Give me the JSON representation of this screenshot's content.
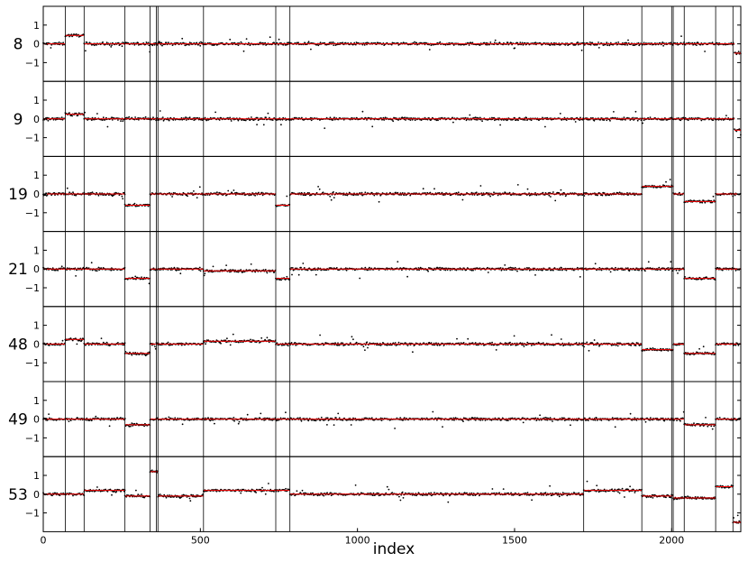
{
  "chart_data": {
    "type": "scatter",
    "xlabel": "index",
    "xlim": [
      0,
      2220
    ],
    "xticks": [
      0,
      500,
      1000,
      1500,
      2000
    ],
    "ylim": [
      -2,
      2
    ],
    "yticks": [
      -1,
      0,
      1
    ],
    "breakpoints": [
      70,
      130,
      260,
      340,
      360,
      365,
      510,
      740,
      785,
      1720,
      1905,
      2000,
      2005,
      2040,
      2140,
      2195
    ],
    "panels": [
      {
        "name": "8",
        "segments": [
          [
            0,
            70,
            0.0
          ],
          [
            70,
            130,
            0.45
          ],
          [
            130,
            2200,
            0.0
          ],
          [
            2200,
            2220,
            -0.5
          ]
        ]
      },
      {
        "name": "9",
        "segments": [
          [
            0,
            70,
            0.0
          ],
          [
            70,
            130,
            0.25
          ],
          [
            130,
            2200,
            0.0
          ],
          [
            2200,
            2220,
            -0.6
          ]
        ]
      },
      {
        "name": "19",
        "segments": [
          [
            0,
            260,
            0.0
          ],
          [
            260,
            340,
            -0.6
          ],
          [
            340,
            740,
            0.0
          ],
          [
            740,
            785,
            -0.6
          ],
          [
            785,
            1905,
            0.0
          ],
          [
            1905,
            2005,
            0.4
          ],
          [
            2005,
            2040,
            0.0
          ],
          [
            2040,
            2140,
            -0.4
          ],
          [
            2140,
            2220,
            0.0
          ]
        ]
      },
      {
        "name": "21",
        "segments": [
          [
            0,
            260,
            0.0
          ],
          [
            260,
            340,
            -0.5
          ],
          [
            340,
            510,
            0.0
          ],
          [
            510,
            740,
            -0.1
          ],
          [
            740,
            785,
            -0.5
          ],
          [
            785,
            2040,
            0.0
          ],
          [
            2040,
            2140,
            -0.5
          ],
          [
            2140,
            2220,
            0.0
          ]
        ]
      },
      {
        "name": "48",
        "segments": [
          [
            0,
            70,
            0.0
          ],
          [
            70,
            130,
            0.25
          ],
          [
            130,
            260,
            0.0
          ],
          [
            260,
            340,
            -0.5
          ],
          [
            340,
            510,
            0.0
          ],
          [
            510,
            740,
            0.15
          ],
          [
            740,
            1905,
            0.0
          ],
          [
            1905,
            2005,
            -0.3
          ],
          [
            2005,
            2040,
            0.0
          ],
          [
            2040,
            2140,
            -0.5
          ],
          [
            2140,
            2220,
            0.0
          ]
        ]
      },
      {
        "name": "49",
        "segments": [
          [
            0,
            260,
            0.0
          ],
          [
            260,
            340,
            -0.3
          ],
          [
            340,
            2040,
            0.0
          ],
          [
            2040,
            2140,
            -0.3
          ],
          [
            2140,
            2220,
            0.0
          ]
        ]
      },
      {
        "name": "53",
        "segments": [
          [
            0,
            130,
            0.0
          ],
          [
            130,
            260,
            0.2
          ],
          [
            260,
            340,
            -0.1
          ],
          [
            340,
            365,
            1.2
          ],
          [
            365,
            510,
            -0.1
          ],
          [
            510,
            785,
            0.2
          ],
          [
            785,
            1720,
            0.0
          ],
          [
            1720,
            1905,
            0.2
          ],
          [
            1905,
            2005,
            -0.1
          ],
          [
            2005,
            2140,
            -0.2
          ],
          [
            2140,
            2195,
            0.4
          ],
          [
            2195,
            2220,
            -1.5
          ]
        ]
      }
    ]
  },
  "style": {
    "point_color": "#000000",
    "fit_color": "#ff0000",
    "axis_color": "#000000"
  }
}
